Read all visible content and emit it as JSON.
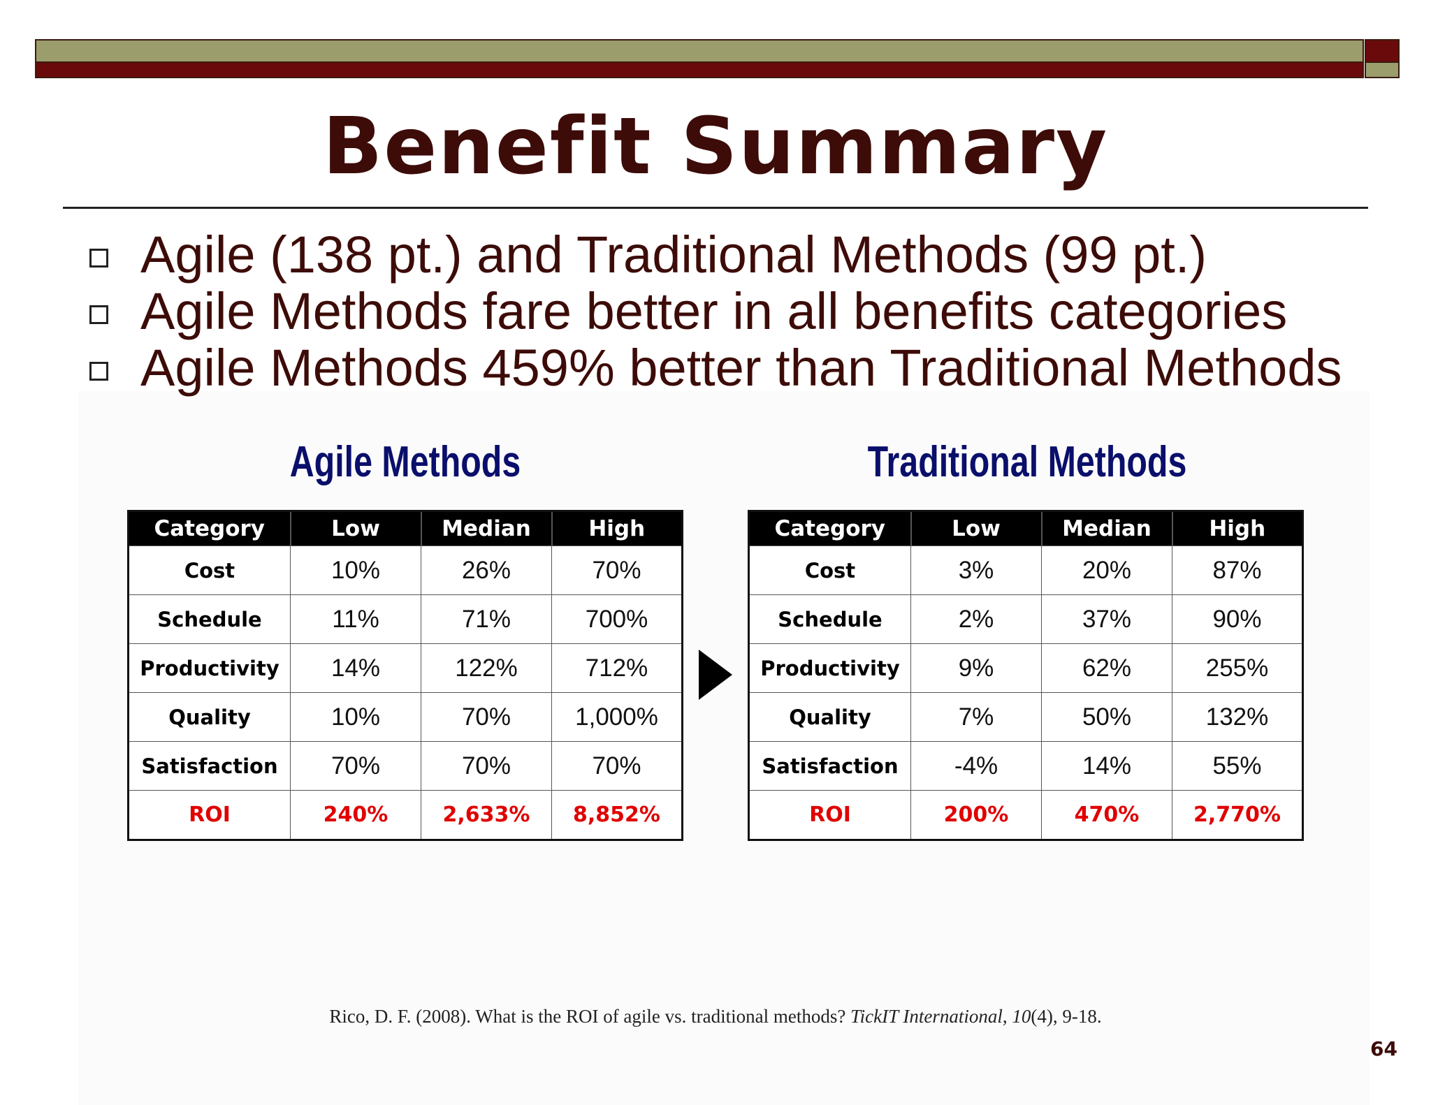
{
  "title": "Benefit Summary",
  "bullets": [
    "Agile (138 pt.) and Traditional Methods (99 pt.)",
    "Agile Methods fare better in all benefits categories",
    "Agile Methods 459% better than Traditional Methods"
  ],
  "agile": {
    "heading": "Agile Methods",
    "columns": [
      "Category",
      "Low",
      "Median",
      "High"
    ],
    "rows": [
      {
        "category": "Cost",
        "low": "10%",
        "median": "26%",
        "high": "70%"
      },
      {
        "category": "Schedule",
        "low": "11%",
        "median": "71%",
        "high": "700%"
      },
      {
        "category": "Productivity",
        "low": "14%",
        "median": "122%",
        "high": "712%"
      },
      {
        "category": "Quality",
        "low": "10%",
        "median": "70%",
        "high": "1,000%"
      },
      {
        "category": "Satisfaction",
        "low": "70%",
        "median": "70%",
        "high": "70%"
      },
      {
        "category": "ROI",
        "low": "240%",
        "median": "2,633%",
        "high": "8,852%"
      }
    ]
  },
  "traditional": {
    "heading": "Traditional Methods",
    "columns": [
      "Category",
      "Low",
      "Median",
      "High"
    ],
    "rows": [
      {
        "category": "Cost",
        "low": "3%",
        "median": "20%",
        "high": "87%"
      },
      {
        "category": "Schedule",
        "low": "2%",
        "median": "37%",
        "high": "90%"
      },
      {
        "category": "Productivity",
        "low": "9%",
        "median": "62%",
        "high": "255%"
      },
      {
        "category": "Quality",
        "low": "7%",
        "median": "50%",
        "high": "132%"
      },
      {
        "category": "Satisfaction",
        "low": "-4%",
        "median": "14%",
        "high": "55%"
      },
      {
        "category": "ROI",
        "low": "200%",
        "median": "470%",
        "high": "2,770%"
      }
    ]
  },
  "citation": {
    "before": "Rico, D. F. (2008). What is the ROI of agile vs. traditional methods? ",
    "journal": "TickIT International",
    "sep": ", ",
    "volume": "10",
    "after": "(4), 9-18."
  },
  "page_number": "64",
  "colors": {
    "title": "#3d0c08",
    "heading": "#0a0f6b",
    "roi": "#e00000",
    "bar_olive": "#9b9d6c",
    "bar_red": "#6b0a0a"
  }
}
